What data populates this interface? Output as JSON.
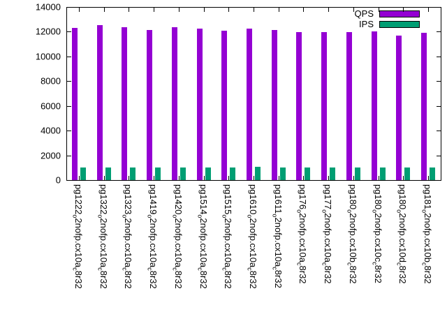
{
  "chart_data": {
    "type": "bar",
    "title": "",
    "xlabel": "",
    "ylabel": "",
    "grid": false,
    "legend_position": "top-right",
    "ylim": [
      0,
      14000
    ],
    "yticks": [
      0,
      2000,
      4000,
      6000,
      8000,
      10000,
      12000,
      14000
    ],
    "categories": [
      "pg1222_o2nofp.cx10a_c8r32",
      "pg1322_o2nofp.cx10a_c8r32",
      "pg1323_o2nofp.cx10a_c8r32",
      "pg1419_o2nofp.cx10a_c8r32",
      "pg1420_o2nofp.cx10a_c8r32",
      "pg1514_o2nofp.cx10a_c8r32",
      "pg1515_o2nofp.cx10a_c8r32",
      "pg1610_o2nofp.cx10a_c8r32",
      "pg1611_o2nofp.cx10a_c8r32",
      "pg176_o2nofp.cx10a_c8r32",
      "pg177_o2nofp.cx10a_c8r32",
      "pg180_o2nofp.cx10b_c8r32",
      "pg180_o2nofp.cx10c_c8r32",
      "pg180_o2nofp.cx10d_c8r32",
      "pg181_o2nofp.cx10b_c8r32"
    ],
    "series": [
      {
        "name": "QPS",
        "color": "#9400d3",
        "values": [
          12300,
          12550,
          12350,
          12150,
          12350,
          12250,
          12100,
          12250,
          12150,
          11950,
          11950,
          11950,
          12050,
          11700,
          11900
        ]
      },
      {
        "name": "IPS",
        "color": "#009e73",
        "values": [
          1000,
          1000,
          1010,
          1000,
          1000,
          1000,
          1000,
          1050,
          1040,
          1000,
          1000,
          1000,
          1010,
          1000,
          1000
        ]
      }
    ]
  }
}
